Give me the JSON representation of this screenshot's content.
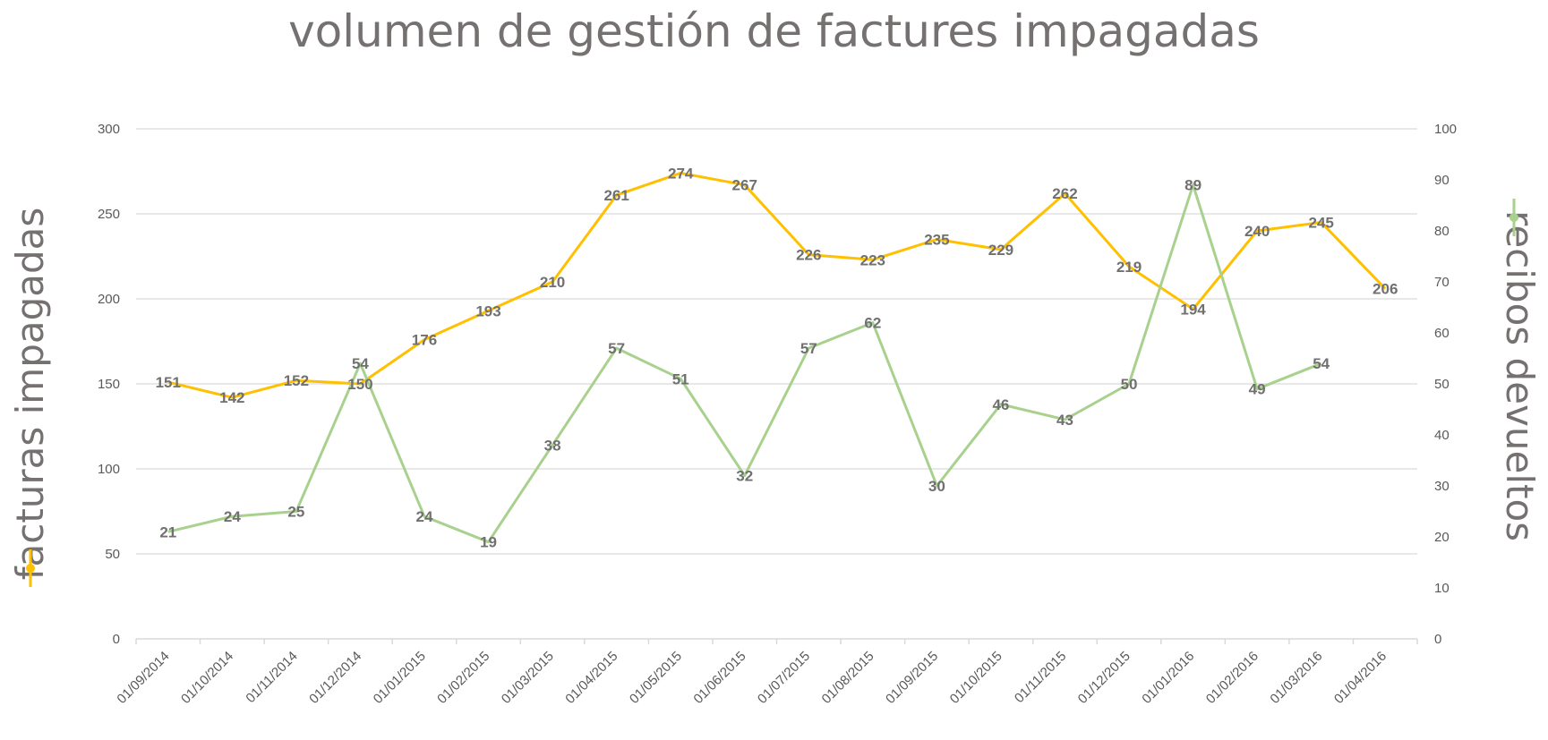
{
  "chart_data": {
    "type": "line",
    "title": "volumen de gestión de factures impagadas",
    "categories": [
      "01/09/2014",
      "01/10/2014",
      "01/11/2014",
      "01/12/2014",
      "01/01/2015",
      "01/02/2015",
      "01/03/2015",
      "01/04/2015",
      "01/05/2015",
      "01/06/2015",
      "01/07/2015",
      "01/08/2015",
      "01/09/2015",
      "01/10/2015",
      "01/11/2015",
      "01/12/2015",
      "01/01/2016",
      "01/02/2016",
      "01/03/2016",
      "01/04/2016"
    ],
    "y_left": {
      "label": "facturas impagadas",
      "range": [
        0,
        300
      ],
      "ticks": [
        "0",
        "50",
        "100",
        "150",
        "200",
        "250",
        "300"
      ]
    },
    "y_right": {
      "label": "recibos devueltos",
      "range": [
        0,
        100
      ],
      "ticks": [
        "0",
        "10",
        "20",
        "30",
        "40",
        "50",
        "60",
        "70",
        "80",
        "90",
        "100"
      ]
    },
    "series": [
      {
        "name": "facturas impagadas",
        "axis": "left",
        "color": "#FFC000",
        "values": [
          151,
          142,
          152,
          150,
          176,
          193,
          210,
          261,
          274,
          267,
          226,
          223,
          235,
          229,
          262,
          219,
          194,
          240,
          245,
          206
        ]
      },
      {
        "name": "recibos devueltos",
        "axis": "right",
        "color": "#A9D18E",
        "values": [
          21,
          24,
          25,
          54,
          24,
          19,
          38,
          57,
          51,
          32,
          57,
          62,
          30,
          46,
          43,
          50,
          89,
          49,
          54,
          null
        ]
      }
    ],
    "grid": true,
    "data_labels": true
  }
}
